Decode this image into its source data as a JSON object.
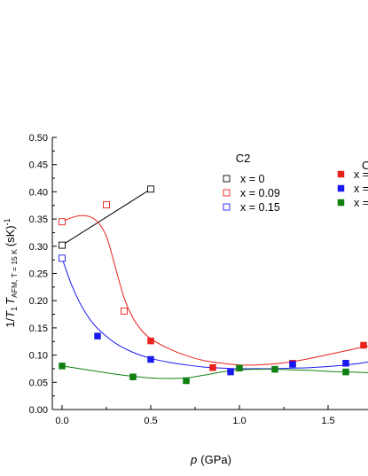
{
  "chart_data": {
    "type": "scatter",
    "xlabel": {
      "var": "p",
      "unit": "(GPa)"
    },
    "ylabel": {
      "lead": "1/",
      "t": "T",
      "t1": "1",
      "t2": "T",
      "sub": "AFM, T = 15 K",
      "unit": "(sK)",
      "exp": "-1"
    },
    "xlim": [
      -0.05,
      1.85
    ],
    "ylim": [
      0.0,
      0.5
    ],
    "x_ticks": [
      "0.0",
      "0.5",
      "1.0",
      "1.5"
    ],
    "x_tick_values": [
      0,
      0.5,
      1.0,
      1.5
    ],
    "y_ticks": [
      "0.00",
      "0.05",
      "0.10",
      "0.15",
      "0.20",
      "0.25",
      "0.30",
      "0.35",
      "0.40",
      "0.45",
      "0.50"
    ],
    "y_tick_values": [
      0,
      0.05,
      0.1,
      0.15,
      0.2,
      0.25,
      0.3,
      0.35,
      0.4,
      0.45,
      0.5
    ],
    "legend_titles": [
      "C2",
      "C"
    ],
    "series": [
      {
        "name": "x = 0",
        "group": "C2",
        "marker": "open-square",
        "color": "#000000",
        "x": [
          0.0,
          0.5
        ],
        "y": [
          0.302,
          0.405
        ]
      },
      {
        "name": "x = 0.09",
        "group": "C2",
        "marker": "open-square",
        "color": "#e8211b",
        "x": [
          0.0,
          0.25,
          0.35
        ],
        "y": [
          0.345,
          0.376,
          0.181
        ]
      },
      {
        "name": "x = 0.15",
        "group": "C2",
        "marker": "open-square",
        "color": "#1a1aef",
        "x": [
          0.0
        ],
        "y": [
          0.278
        ]
      },
      {
        "name": "x =",
        "group": "C",
        "marker": "filled-square",
        "color": "#e8211b",
        "x": [
          0.5,
          0.85,
          1.3,
          1.7
        ],
        "y": [
          0.126,
          0.077,
          0.085,
          0.118
        ]
      },
      {
        "name": "x =",
        "group": "C",
        "marker": "filled-square",
        "color": "#1a1aef",
        "x": [
          0.2,
          0.5,
          0.95,
          1.3,
          1.6
        ],
        "y": [
          0.135,
          0.092,
          0.069,
          0.083,
          0.085
        ]
      },
      {
        "name": "x =",
        "group": "C",
        "marker": "filled-square",
        "color": "#118011",
        "x": [
          0.0,
          0.4,
          0.7,
          1.0,
          1.2,
          1.6
        ],
        "y": [
          0.08,
          0.06,
          0.053,
          0.076,
          0.074,
          0.069
        ]
      }
    ],
    "fit_lines": [
      {
        "color": "#000000",
        "x": [
          0.0,
          0.5
        ],
        "y": [
          0.302,
          0.405
        ]
      },
      {
        "color": "#e8211b",
        "x": [
          0.0,
          0.05,
          0.1,
          0.15,
          0.2,
          0.25,
          0.3,
          0.35,
          0.4,
          0.45,
          0.5,
          0.6,
          0.7,
          0.8,
          0.9,
          1.0,
          1.1,
          1.2,
          1.3,
          1.4,
          1.5,
          1.6,
          1.7,
          1.85
        ],
        "y": [
          0.345,
          0.352,
          0.356,
          0.355,
          0.345,
          0.318,
          0.262,
          0.205,
          0.168,
          0.145,
          0.13,
          0.112,
          0.099,
          0.09,
          0.085,
          0.082,
          0.082,
          0.084,
          0.088,
          0.094,
          0.101,
          0.108,
          0.115,
          0.124
        ]
      },
      {
        "color": "#1a1aef",
        "x": [
          0.0,
          0.05,
          0.1,
          0.15,
          0.2,
          0.3,
          0.4,
          0.5,
          0.6,
          0.7,
          0.8,
          0.9,
          1.0,
          1.1,
          1.2,
          1.3,
          1.4,
          1.5,
          1.6,
          1.7,
          1.85
        ],
        "y": [
          0.278,
          0.232,
          0.196,
          0.169,
          0.149,
          0.122,
          0.105,
          0.094,
          0.087,
          0.082,
          0.078,
          0.076,
          0.075,
          0.075,
          0.075,
          0.076,
          0.077,
          0.079,
          0.082,
          0.086,
          0.094
        ]
      },
      {
        "color": "#118011",
        "x": [
          0.0,
          0.1,
          0.2,
          0.3,
          0.4,
          0.5,
          0.6,
          0.7,
          0.8,
          0.9,
          1.0,
          1.1,
          1.2,
          1.3,
          1.4,
          1.5,
          1.6,
          1.7,
          1.85
        ],
        "y": [
          0.08,
          0.075,
          0.07,
          0.065,
          0.061,
          0.058,
          0.057,
          0.058,
          0.063,
          0.069,
          0.073,
          0.074,
          0.074,
          0.073,
          0.072,
          0.07,
          0.069,
          0.068,
          0.067
        ]
      }
    ]
  }
}
